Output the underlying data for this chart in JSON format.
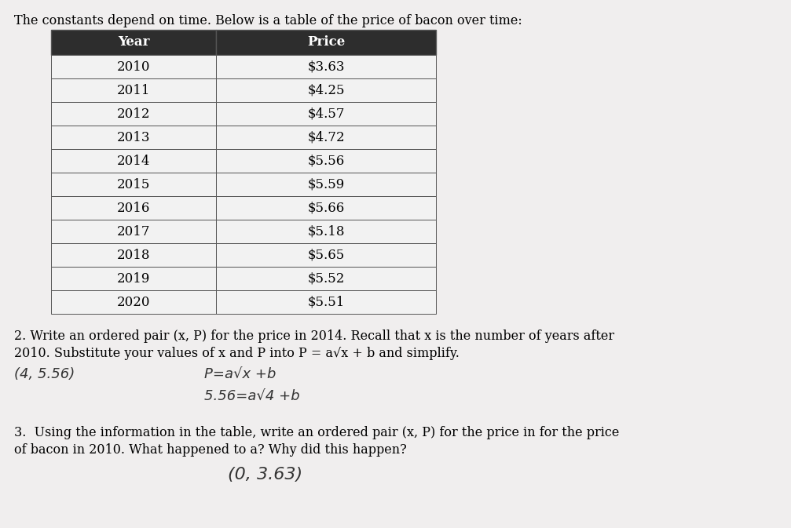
{
  "title": "The constants depend on time. Below is a table of the price of bacon over time:",
  "table_headers": [
    "Year",
    "Price"
  ],
  "table_data": [
    [
      "2010",
      "$3.63"
    ],
    [
      "2011",
      "$4.25"
    ],
    [
      "2012",
      "$4.57"
    ],
    [
      "2013",
      "$4.72"
    ],
    [
      "2014",
      "$5.56"
    ],
    [
      "2015",
      "$5.59"
    ],
    [
      "2016",
      "$5.66"
    ],
    [
      "2017",
      "$5.18"
    ],
    [
      "2018",
      "$5.65"
    ],
    [
      "2019",
      "$5.52"
    ],
    [
      "2020",
      "$5.51"
    ]
  ],
  "header_bg": "#2d2d2d",
  "header_text_color": "#ffffff",
  "row_bg": "#f5f5f5",
  "row_text_color": "#000000",
  "line_color": "#555555",
  "page_bg": "#e0dede",
  "text_q2_line1": "2. Write an ordered pair (x, P) for the price in 2014. Recall that x is the number of years after",
  "text_q2_line2": "2010. Substitute your values of x and P into P = a√x + b and simplify.",
  "text_q2_hw1": "(4, 5.56)",
  "text_q2_hw2": "P=a√x +b",
  "text_q2_hw3": "5.56=a√4 +b",
  "text_q3_line1": "3.  Using the information in the table, write an ordered pair (x, P) for the price in for the price",
  "text_q3_line2": "of bacon in 2010. What happened to a? Why did this happen?",
  "text_q3_hw": "(0, 3.63)",
  "title_fontsize": 11.5,
  "body_fontsize": 11.5,
  "hw_fontsize": 13,
  "table_fontsize": 12
}
